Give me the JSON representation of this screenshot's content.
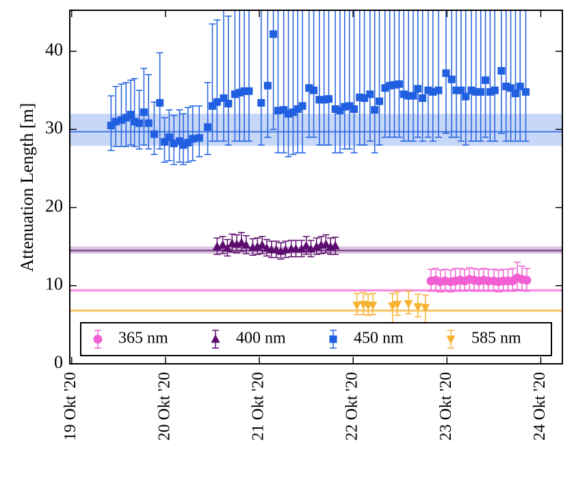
{
  "chart_data": {
    "type": "errorbar",
    "y_label": "Attenuation Length [m]",
    "xlim": [
      18.98,
      24.23
    ],
    "xticks": [
      {
        "value": 19,
        "label": "19 Okt '20"
      },
      {
        "value": 20,
        "label": "20 Okt '20"
      },
      {
        "value": 21,
        "label": "21 Okt '20"
      },
      {
        "value": 22,
        "label": "22 Okt '20"
      },
      {
        "value": 23,
        "label": "23 Okt '20"
      },
      {
        "value": 24,
        "label": "24 Okt '20"
      }
    ],
    "ylim": [
      0,
      45.25
    ],
    "yticks": [
      0,
      10,
      20,
      30,
      40
    ],
    "legend": "lower center",
    "series": [
      {
        "name": "365 nm",
        "color": "#f25fd2",
        "marker": "circle",
        "mean": 9.4,
        "band": [
          9.2,
          9.6
        ],
        "x": [
          22.83,
          22.88,
          22.93,
          22.98,
          23.04,
          23.09,
          23.14,
          23.19,
          23.24,
          23.29,
          23.34,
          23.39,
          23.44,
          23.5,
          23.55,
          23.6,
          23.65,
          23.7,
          23.75,
          23.8,
          23.85
        ],
        "values": [
          10.6,
          10.7,
          10.5,
          10.6,
          10.5,
          10.6,
          10.7,
          10.6,
          10.8,
          10.7,
          10.6,
          10.7,
          10.6,
          10.6,
          10.5,
          10.6,
          10.6,
          10.6,
          11.0,
          10.8,
          10.7
        ],
        "lower": [
          9.3,
          9.3,
          9.2,
          9.3,
          9.2,
          9.3,
          9.3,
          9.3,
          9.4,
          9.3,
          9.3,
          9.3,
          9.3,
          9.3,
          9.2,
          9.3,
          9.3,
          9.3,
          9.5,
          9.4,
          9.3
        ],
        "upper": [
          12.1,
          12.2,
          12.0,
          12.1,
          12.0,
          12.2,
          12.2,
          12.1,
          12.3,
          12.2,
          12.1,
          12.2,
          12.1,
          12.1,
          12.0,
          12.1,
          12.1,
          12.2,
          13.0,
          12.5,
          12.2
        ]
      },
      {
        "name": "400 nm",
        "color": "#5c0b6e",
        "marker": "triangle-up",
        "mean": 14.5,
        "band": [
          14.1,
          15.0
        ],
        "x": [
          20.55,
          20.61,
          20.66,
          20.71,
          20.76,
          20.81,
          20.86,
          20.93,
          20.98,
          21.03,
          21.08,
          21.13,
          21.18,
          21.23,
          21.28,
          21.34,
          21.39,
          21.45,
          21.5,
          21.55,
          21.61,
          21.66,
          21.71,
          21.76,
          21.81
        ],
        "values": [
          15.0,
          15.2,
          14.8,
          15.4,
          15.3,
          15.5,
          15.2,
          14.9,
          15.0,
          15.2,
          14.8,
          14.6,
          14.6,
          14.4,
          14.6,
          14.7,
          14.7,
          14.7,
          15.1,
          14.7,
          15.0,
          15.2,
          15.3,
          15.0,
          15.1
        ],
        "lower": [
          14.0,
          14.1,
          13.8,
          14.3,
          14.2,
          14.4,
          14.1,
          13.9,
          14.0,
          14.1,
          13.8,
          13.6,
          13.6,
          13.4,
          13.6,
          13.7,
          13.7,
          13.7,
          14.0,
          13.7,
          14.0,
          14.1,
          14.2,
          14.0,
          14.0
        ],
        "upper": [
          16.1,
          16.3,
          15.9,
          16.6,
          16.5,
          16.8,
          16.4,
          16.0,
          16.1,
          16.3,
          15.9,
          15.7,
          15.7,
          15.5,
          15.7,
          15.8,
          15.8,
          15.8,
          16.3,
          15.8,
          16.1,
          16.3,
          16.5,
          16.1,
          16.2
        ]
      },
      {
        "name": "450 nm",
        "color": "#1f5fe0",
        "marker": "square",
        "mean": 29.7,
        "band": [
          27.9,
          32.0
        ],
        "x": [
          19.42,
          19.47,
          19.53,
          19.58,
          19.63,
          19.67,
          19.72,
          19.77,
          19.82,
          19.88,
          19.94,
          19.99,
          20.04,
          20.09,
          20.15,
          20.19,
          20.24,
          20.29,
          20.36,
          20.45,
          20.5,
          20.55,
          20.62,
          20.67,
          20.74,
          20.79,
          20.84,
          20.89,
          21.02,
          21.09,
          21.15,
          21.2,
          21.26,
          21.31,
          21.36,
          21.41,
          21.46,
          21.53,
          21.58,
          21.64,
          21.69,
          21.74,
          21.81,
          21.86,
          21.91,
          21.96,
          22.01,
          22.07,
          22.12,
          22.18,
          22.23,
          22.28,
          22.34,
          22.39,
          22.44,
          22.49,
          22.54,
          22.59,
          22.64,
          22.69,
          22.74,
          22.8,
          22.85,
          22.91,
          22.99,
          23.05,
          23.1,
          23.15,
          23.2,
          23.26,
          23.31,
          23.36,
          23.41,
          23.46,
          23.51,
          23.58,
          23.63,
          23.68,
          23.73,
          23.78,
          23.84
        ],
        "values": [
          30.5,
          31.0,
          31.2,
          31.5,
          31.9,
          31.0,
          30.8,
          32.2,
          30.8,
          29.4,
          33.4,
          28.4,
          29.0,
          28.2,
          28.5,
          28.0,
          28.3,
          28.8,
          28.9,
          30.3,
          33.0,
          33.5,
          34.0,
          33.3,
          34.5,
          34.7,
          34.9,
          34.9,
          33.4,
          35.6,
          42.2,
          32.4,
          32.5,
          32.0,
          32.2,
          32.6,
          33.0,
          35.3,
          35.0,
          33.8,
          33.8,
          33.9,
          32.6,
          32.4,
          32.9,
          33.0,
          32.6,
          34.1,
          34.0,
          34.5,
          32.5,
          33.6,
          35.3,
          35.6,
          35.7,
          35.8,
          34.5,
          34.3,
          34.3,
          35.2,
          34.0,
          35.0,
          34.8,
          35.0,
          37.2,
          36.4,
          35.0,
          35.0,
          34.2,
          35.0,
          34.8,
          34.8,
          36.3,
          34.8,
          35.0,
          37.5,
          35.5,
          35.3,
          34.6,
          35.5,
          34.8
        ],
        "lower": [
          27.3,
          27.8,
          27.8,
          27.8,
          28.0,
          27.8,
          27.5,
          28.0,
          27.5,
          26.8,
          27.5,
          25.8,
          26.0,
          25.5,
          25.8,
          25.5,
          25.8,
          26.0,
          26.5,
          26.8,
          28.5,
          28.5,
          28.5,
          28.0,
          28.5,
          28.5,
          28.5,
          28.5,
          28.0,
          29.0,
          30.0,
          27.0,
          27.0,
          26.5,
          26.8,
          27.0,
          27.0,
          29.0,
          29.0,
          28.0,
          28.0,
          28.0,
          27.0,
          27.0,
          27.5,
          27.5,
          27.0,
          28.0,
          28.0,
          28.5,
          27.0,
          28.0,
          29.0,
          29.0,
          29.0,
          29.0,
          28.5,
          28.5,
          28.5,
          29.0,
          28.5,
          29.0,
          28.5,
          29.0,
          29.5,
          29.0,
          29.0,
          28.5,
          28.0,
          28.5,
          28.5,
          28.5,
          29.0,
          28.5,
          28.5,
          29.5,
          28.5,
          28.5,
          28.5,
          28.5,
          28.5
        ],
        "upper": [
          34.3,
          35.5,
          35.8,
          36.0,
          36.3,
          36.5,
          35.0,
          37.8,
          37.0,
          33.5,
          39.8,
          31.5,
          32.5,
          31.8,
          32.5,
          32.0,
          32.8,
          33.0,
          33.0,
          36.0,
          43.5,
          44.0,
          46,
          44.5,
          46,
          46,
          46,
          46,
          46,
          46,
          46,
          46,
          46,
          46,
          46,
          46,
          46,
          46,
          46,
          46,
          46,
          46,
          46,
          46,
          46,
          46,
          46,
          46,
          46,
          46,
          46,
          46,
          46,
          46,
          46,
          46,
          46,
          46,
          46,
          46,
          46,
          46,
          46,
          46,
          46,
          46,
          46,
          46,
          46,
          46,
          46,
          46,
          46,
          46,
          46,
          46,
          46,
          46,
          46,
          46,
          46
        ]
      },
      {
        "name": "585 nm",
        "color": "#f7b232",
        "marker": "triangle-down",
        "mean": 6.8,
        "band": [
          6.6,
          7.0
        ],
        "x": [
          22.04,
          22.11,
          22.16,
          22.21,
          22.42,
          22.47,
          22.59,
          22.69,
          22.77
        ],
        "values": [
          7.5,
          7.6,
          7.5,
          7.5,
          7.4,
          7.6,
          7.7,
          7.3,
          7.2
        ],
        "lower": [
          6.3,
          6.3,
          6.2,
          6.3,
          5.0,
          6.2,
          6.4,
          6.0,
          5.0
        ],
        "upper": [
          9.0,
          9.1,
          8.9,
          9.0,
          9.0,
          9.2,
          9.3,
          8.9,
          8.8
        ]
      }
    ]
  }
}
